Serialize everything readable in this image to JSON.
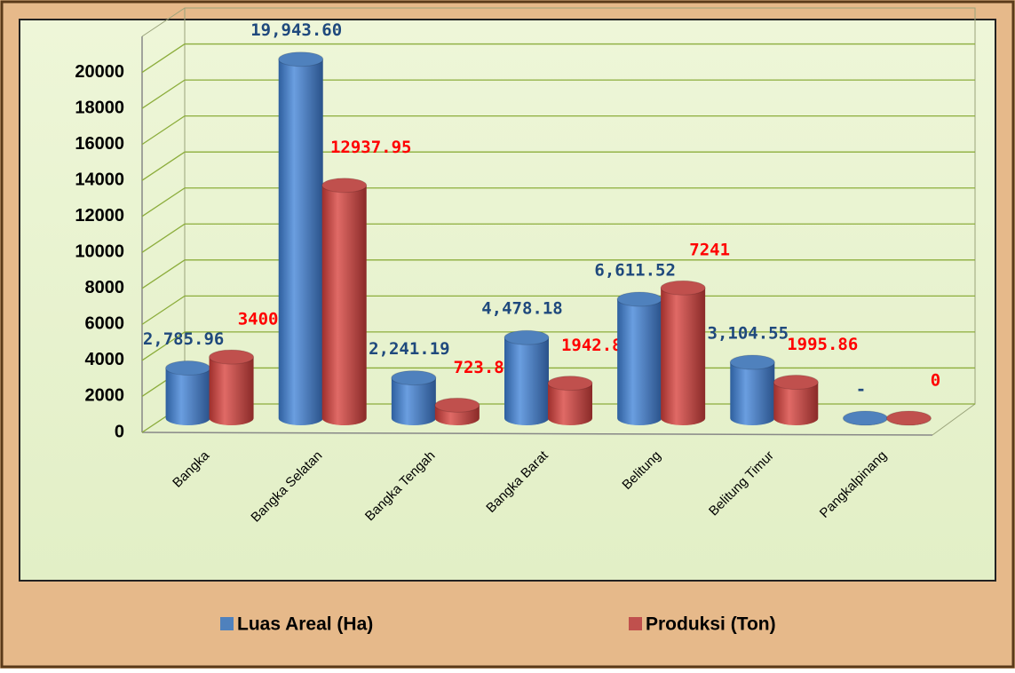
{
  "chart_data": {
    "type": "bar3d",
    "categories": [
      "Bangka",
      "Bangka Selatan",
      "Bangka Tengah",
      "Bangka Barat",
      "Belitung",
      "Belitung Timur",
      "Pangkalpinang"
    ],
    "series": [
      {
        "name": "Luas Areal (Ha)",
        "color": "#4f81bd",
        "label_color": "#1f497d",
        "values": [
          2785.96,
          19943.6,
          2241.19,
          4478.18,
          6611.52,
          3104.55,
          0
        ],
        "value_labels": [
          "2,785.96",
          "19,943.60",
          "2,241.19",
          "4,478.18",
          "6,611.52",
          "3,104.55",
          "-"
        ]
      },
      {
        "name": "Produksi (Ton)",
        "color": "#c0504d",
        "label_color": "#ff0000",
        "values": [
          3400,
          12937.95,
          723.85,
          1942.85,
          7241,
          1995.86,
          0
        ]
      }
    ],
    "ylim": [
      0,
      22000
    ],
    "yticks": [
      0,
      2000,
      4000,
      6000,
      8000,
      10000,
      12000,
      14000,
      16000,
      18000,
      20000
    ],
    "grid": true,
    "legend": "bottom"
  }
}
